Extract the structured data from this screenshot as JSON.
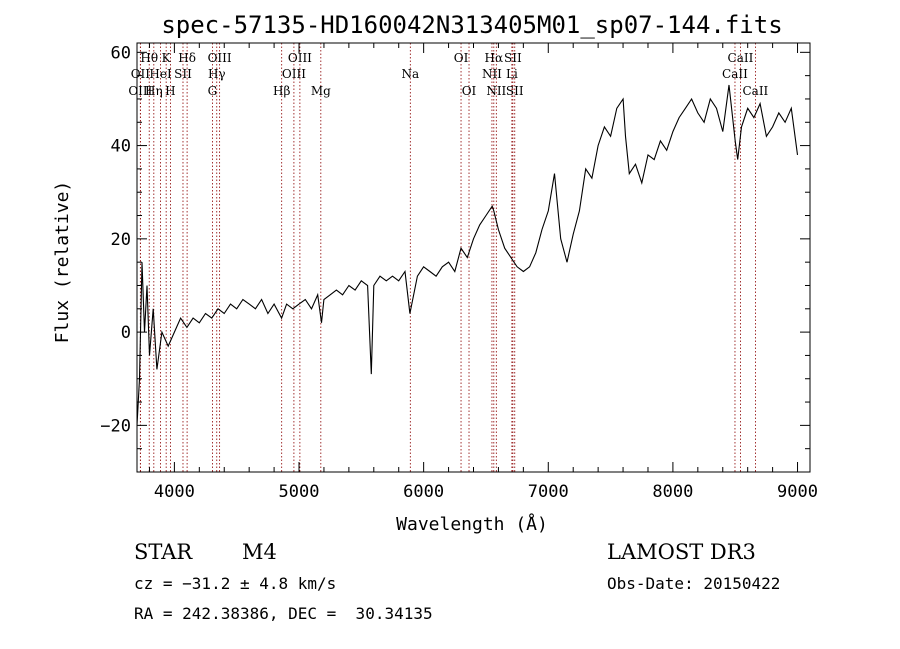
{
  "chart_data": {
    "type": "line",
    "title": "spec-57135-HD160042N313405M01_sp07-144.fits",
    "xlabel": "Wavelength (Å)",
    "ylabel": "Flux (relative)",
    "xlim": [
      3700,
      9100
    ],
    "ylim": [
      -30,
      62
    ],
    "xticks": [
      4000,
      5000,
      6000,
      7000,
      8000,
      9000
    ],
    "xtick_labels": [
      "4000",
      "5000",
      "6000",
      "7000",
      "8000",
      "9000"
    ],
    "yticks": [
      -20,
      0,
      20,
      40,
      60
    ],
    "ytick_labels": [
      "−20",
      "0",
      "20",
      "40",
      "60"
    ],
    "grid": false,
    "spectrum": {
      "name": "flux",
      "x": [
        3700,
        3720,
        3740,
        3760,
        3780,
        3800,
        3830,
        3860,
        3900,
        3950,
        4000,
        4050,
        4100,
        4150,
        4200,
        4250,
        4300,
        4350,
        4400,
        4450,
        4500,
        4550,
        4600,
        4650,
        4700,
        4750,
        4800,
        4860,
        4900,
        4950,
        5000,
        5050,
        5100,
        5150,
        5180,
        5200,
        5250,
        5300,
        5350,
        5400,
        5450,
        5500,
        5550,
        5580,
        5600,
        5650,
        5700,
        5750,
        5800,
        5850,
        5890,
        5950,
        6000,
        6050,
        6100,
        6150,
        6200,
        6250,
        6300,
        6350,
        6400,
        6450,
        6500,
        6550,
        6563,
        6600,
        6650,
        6700,
        6750,
        6800,
        6850,
        6900,
        6950,
        7000,
        7050,
        7100,
        7150,
        7200,
        7250,
        7300,
        7350,
        7400,
        7450,
        7500,
        7550,
        7600,
        7620,
        7650,
        7700,
        7750,
        7800,
        7850,
        7900,
        7950,
        8000,
        8050,
        8100,
        8150,
        8200,
        8250,
        8300,
        8350,
        8400,
        8450,
        8500,
        8520,
        8550,
        8600,
        8650,
        8700,
        8750,
        8800,
        8850,
        8900,
        8950,
        9000
      ],
      "y": [
        -20,
        -10,
        15,
        0,
        10,
        -5,
        5,
        -8,
        0,
        -3,
        0,
        3,
        1,
        3,
        2,
        4,
        3,
        5,
        4,
        6,
        5,
        7,
        6,
        5,
        7,
        4,
        6,
        3,
        6,
        5,
        6,
        7,
        5,
        8,
        2,
        7,
        8,
        9,
        8,
        10,
        9,
        11,
        10,
        -9,
        10,
        12,
        11,
        12,
        11,
        13,
        4,
        12,
        14,
        13,
        12,
        14,
        15,
        13,
        18,
        16,
        20,
        23,
        25,
        27,
        26,
        22,
        18,
        16,
        14,
        13,
        14,
        17,
        22,
        26,
        34,
        20,
        15,
        21,
        26,
        35,
        33,
        40,
        44,
        42,
        48,
        50,
        42,
        34,
        36,
        32,
        38,
        37,
        41,
        39,
        43,
        46,
        48,
        50,
        47,
        45,
        50,
        48,
        43,
        53,
        41,
        37,
        44,
        48,
        46,
        49,
        42,
        44,
        47,
        45,
        48,
        38
      ]
    },
    "spectral_lines": [
      {
        "name": "Hθ",
        "wave": 3798,
        "row": 1
      },
      {
        "name": "OII",
        "wave": 3727,
        "row": 2
      },
      {
        "name": "OIII",
        "wave": 3727,
        "row": 3
      },
      {
        "name": "K",
        "wave": 3934,
        "row": 1
      },
      {
        "name": "HeI",
        "wave": 3889,
        "row": 2
      },
      {
        "name": "Hη",
        "wave": 3835,
        "row": 3
      },
      {
        "name": "H",
        "wave": 3968,
        "row": 3
      },
      {
        "name": "Hδ",
        "wave": 4102,
        "row": 1
      },
      {
        "name": "SII",
        "wave": 4069,
        "row": 2
      },
      {
        "name": "OIII",
        "wave": 4363,
        "row": 1
      },
      {
        "name": "Hγ",
        "wave": 4340,
        "row": 2
      },
      {
        "name": "G",
        "wave": 4305,
        "row": 3
      },
      {
        "name": "Hβ",
        "wave": 4861,
        "row": 3
      },
      {
        "name": "OIII",
        "wave": 5007,
        "row": 1
      },
      {
        "name": "OIII",
        "wave": 4959,
        "row": 2
      },
      {
        "name": "Mg",
        "wave": 5175,
        "row": 3
      },
      {
        "name": "Na",
        "wave": 5893,
        "row": 2
      },
      {
        "name": "OI",
        "wave": 6300,
        "row": 1
      },
      {
        "name": "OI",
        "wave": 6364,
        "row": 3
      },
      {
        "name": "Hα",
        "wave": 6563,
        "row": 1
      },
      {
        "name": "NII",
        "wave": 6548,
        "row": 2
      },
      {
        "name": "NII",
        "wave": 6583,
        "row": 3
      },
      {
        "name": "SII",
        "wave": 6716,
        "row": 1
      },
      {
        "name": "Li",
        "wave": 6708,
        "row": 2
      },
      {
        "name": "SII",
        "wave": 6731,
        "row": 3
      },
      {
        "name": "CaII",
        "wave": 8542,
        "row": 1
      },
      {
        "name": "CaII",
        "wave": 8498,
        "row": 2
      },
      {
        "name": "CaII",
        "wave": 8662,
        "row": 3
      }
    ],
    "line_colors": {
      "spectrum": "#000000",
      "markers": "#8b0000",
      "axes": "#000000"
    }
  },
  "info": {
    "class": "STAR",
    "subclass": "M4",
    "survey": "LAMOST DR3",
    "cz": "cz = −31.2 ± 4.8 km/s",
    "obs_date": "Obs-Date: 20150422",
    "coords": "RA = 242.38386, DEC =  30.34135"
  }
}
